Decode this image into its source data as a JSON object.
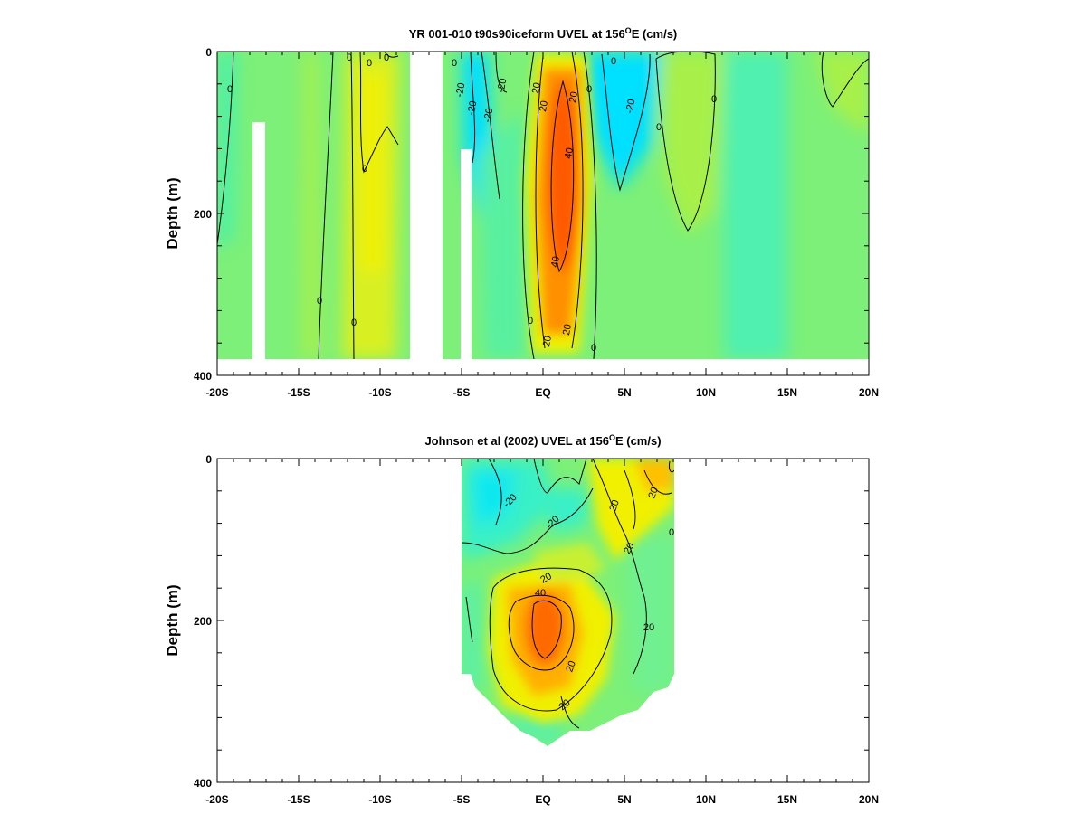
{
  "colors": {
    "strong_westward": "#00e0ff",
    "westward": "#40f0c0",
    "weak": "#7cf078",
    "eastward": "#f0f000",
    "strong_eastward": "#ff9000",
    "core": "#ff5000",
    "contour": "#000000",
    "frame": "#000000"
  },
  "chart_data": [
    {
      "type": "heatmap",
      "title_prefix": "YR 001-010 t90s90iceform UVEL at 156",
      "title_sup": "O",
      "title_suffix": "E (cm/s)",
      "ylabel": "Depth (m)",
      "xlabel": "",
      "xlim": [
        -20,
        20
      ],
      "ylim": [
        400,
        0
      ],
      "x_ticks": [
        "-20S",
        "-15S",
        "-10S",
        "-5S",
        "EQ",
        "5N",
        "10N",
        "15N",
        "20N"
      ],
      "y_ticks": [
        "0",
        "200",
        "400"
      ],
      "contour_levels": [
        -20,
        0,
        20,
        40
      ],
      "contour_labels": [
        "0",
        "0",
        "0",
        "0",
        "0",
        "0",
        "0",
        "0",
        "-20",
        "-20",
        "-20",
        "-20",
        "20",
        "20",
        "20",
        "40",
        "40",
        "0",
        "20",
        "20",
        "0",
        "0",
        "0",
        "-20",
        "0",
        "0"
      ]
    },
    {
      "type": "heatmap",
      "title_prefix": "Johnson et al (2002) UVEL at 156",
      "title_sup": "O",
      "title_suffix": "E (cm/s)",
      "ylabel": "Depth (m)",
      "xlabel": "",
      "xlim": [
        -20,
        20
      ],
      "ylim": [
        400,
        0
      ],
      "x_ticks": [
        "-20S",
        "-15S",
        "-10S",
        "-5S",
        "EQ",
        "5N",
        "10N",
        "15N",
        "20N"
      ],
      "y_ticks": [
        "0",
        "200",
        "400"
      ],
      "data_extent_x": [
        -5,
        8
      ],
      "contour_levels": [
        -20,
        0,
        20,
        40
      ],
      "contour_labels": [
        "-20",
        "-20",
        "20",
        "20",
        "40",
        "20",
        "20",
        "20",
        "0",
        "20",
        "20"
      ]
    }
  ]
}
